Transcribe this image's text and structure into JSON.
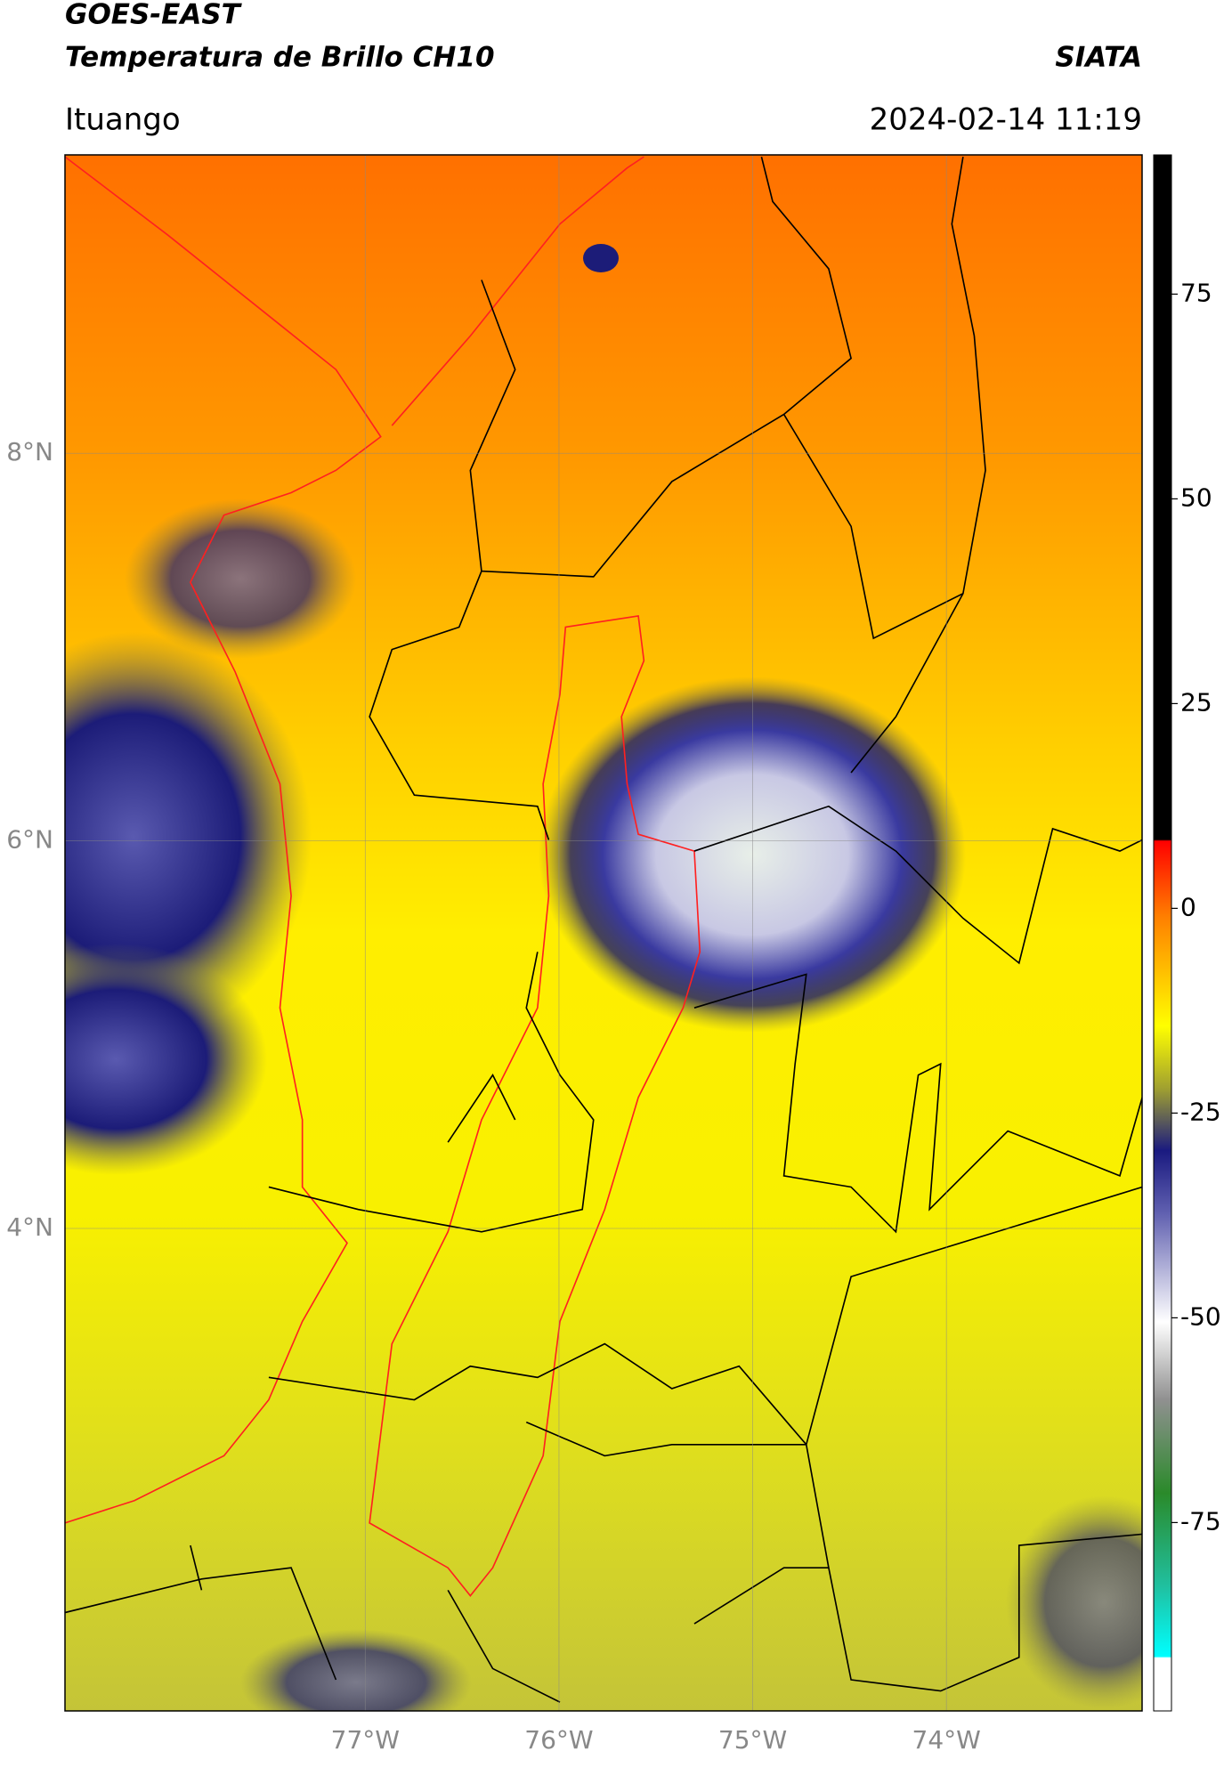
{
  "header": {
    "title": "GOES-EAST",
    "subtitle": "Temperatura de Brillo CH10",
    "source": "SIATA",
    "location": "Ituango",
    "datetime": "2024-02-14 11:19"
  },
  "map": {
    "xlim": [
      -78.55,
      -72.99
    ],
    "ylim": [
      1.51,
      9.54
    ],
    "xticks": [
      {
        "value": -77,
        "label": "77°W"
      },
      {
        "value": -76,
        "label": "76°W"
      },
      {
        "value": -75,
        "label": "75°W"
      },
      {
        "value": -74,
        "label": "74°W"
      }
    ],
    "yticks": [
      {
        "value": 8,
        "label": "8°N"
      },
      {
        "value": 6,
        "label": "6°N"
      },
      {
        "value": 4,
        "label": "4°N"
      }
    ],
    "grid": true
  },
  "colorbar": {
    "lim": [
      -98,
      92
    ],
    "ticks": [
      75,
      50,
      25,
      0,
      -25,
      -50,
      -75
    ]
  }
}
